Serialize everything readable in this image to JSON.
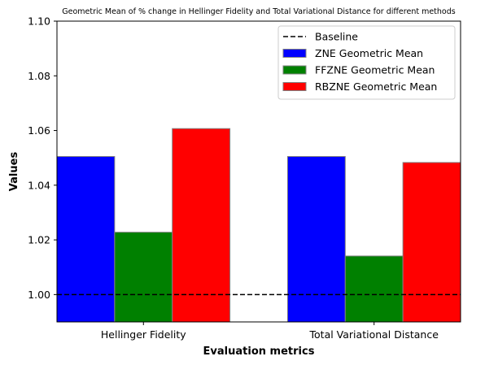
{
  "chart_data": {
    "type": "bar",
    "title": "Geometric Mean of % change in Hellinger Fidelity and Total Variational Distance for different methods",
    "xlabel": "Evaluation metrics",
    "ylabel": "Values",
    "categories": [
      "Hellinger Fidelity",
      "Total Variational Distance"
    ],
    "series": [
      {
        "name": "ZNE Geometric Mean",
        "color": "#0000ff",
        "values": [
          1.0505,
          1.0505
        ]
      },
      {
        "name": "FFZNE Geometric Mean",
        "color": "#008000",
        "values": [
          1.0228,
          1.0141
        ]
      },
      {
        "name": "RBZNE Geometric Mean",
        "color": "#ff0000",
        "values": [
          1.0607,
          1.0483
        ]
      }
    ],
    "baseline": {
      "name": "Baseline",
      "value": 1.0,
      "color": "#000000",
      "style": "dashed"
    },
    "ylim": [
      0.99,
      1.1
    ],
    "yticks": [
      1.0,
      1.02,
      1.04,
      1.06,
      1.08,
      1.1
    ],
    "ytick_labels": [
      "1.00",
      "1.02",
      "1.04",
      "1.06",
      "1.08",
      "1.10"
    ],
    "grid": false,
    "legend_position": "top-right"
  }
}
